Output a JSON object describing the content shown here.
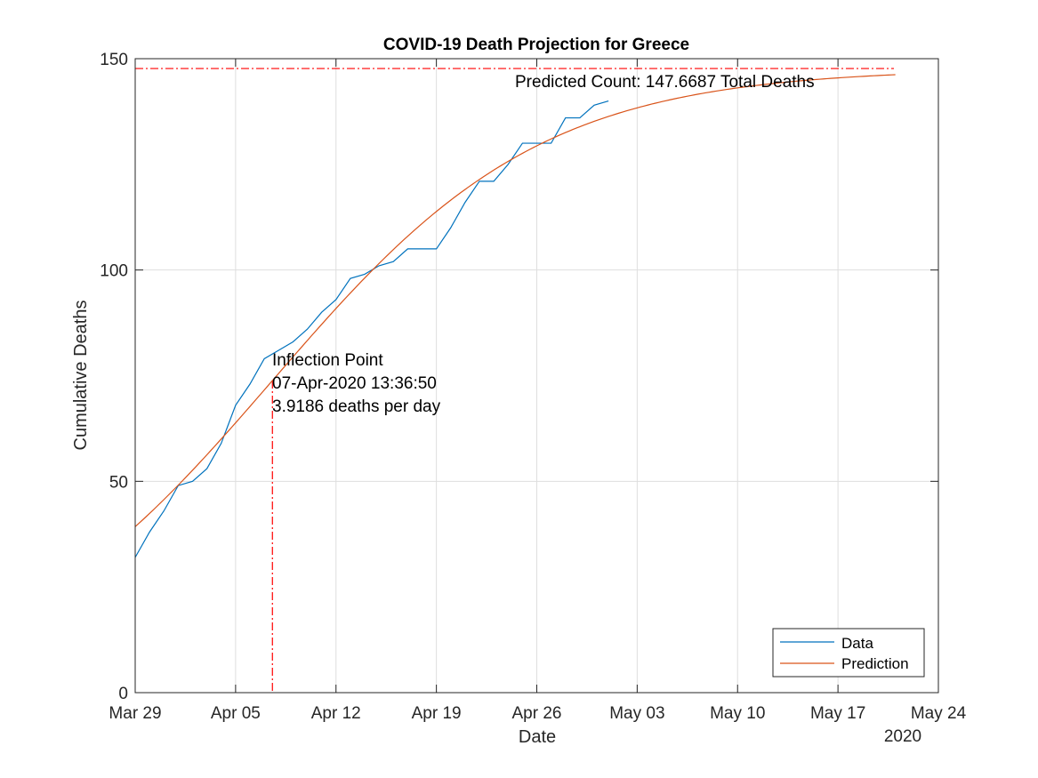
{
  "chart_data": {
    "type": "line",
    "title": "COVID-19 Death Projection for Greece",
    "xlabel": "Date",
    "ylabel": "Cumulative Deaths",
    "xlim": [
      "2020-03-29",
      "2020-05-24"
    ],
    "ylim": [
      0,
      150
    ],
    "x_ticks": [
      "2020-03-29",
      "2020-04-05",
      "2020-04-12",
      "2020-04-19",
      "2020-04-26",
      "2020-05-03",
      "2020-05-10",
      "2020-05-17",
      "2020-05-24"
    ],
    "x_tick_labels": [
      "Mar 29",
      "Apr 05",
      "Apr 12",
      "Apr 19",
      "Apr 26",
      "May 03",
      "May 10",
      "May 17",
      "May 24"
    ],
    "x_secondary_label": "2020",
    "y_ticks": [
      0,
      50,
      100,
      150
    ],
    "grid": true,
    "legend": "bottom-right",
    "series": [
      {
        "name": "Data",
        "color": "#0072BD",
        "x": [
          "2020-03-29",
          "2020-03-30",
          "2020-03-31",
          "2020-04-01",
          "2020-04-02",
          "2020-04-03",
          "2020-04-04",
          "2020-04-05",
          "2020-04-06",
          "2020-04-07",
          "2020-04-08",
          "2020-04-09",
          "2020-04-10",
          "2020-04-11",
          "2020-04-12",
          "2020-04-13",
          "2020-04-14",
          "2020-04-15",
          "2020-04-16",
          "2020-04-17",
          "2020-04-18",
          "2020-04-19",
          "2020-04-20",
          "2020-04-21",
          "2020-04-22",
          "2020-04-23",
          "2020-04-24",
          "2020-04-25",
          "2020-04-26",
          "2020-04-27",
          "2020-04-28",
          "2020-04-29",
          "2020-04-30",
          "2020-05-01"
        ],
        "y": [
          32,
          38,
          43,
          49,
          50,
          53,
          59,
          68,
          73,
          79,
          81,
          83,
          86,
          90,
          93,
          98,
          99,
          101,
          102,
          105,
          105,
          105,
          110,
          116,
          121,
          121,
          125,
          130,
          130,
          130,
          136,
          136,
          139,
          140
        ]
      },
      {
        "name": "Prediction",
        "color": "#D95319",
        "type": "logistic",
        "x_start": "2020-03-29",
        "x_end": "2020-05-21",
        "total": 147.6687,
        "inflection": "2020-04-07T13:36:50",
        "peak_rate": 3.9186
      }
    ],
    "annotations": {
      "predicted_count": {
        "text": "Predicted Count: 147.6687 Total Deaths",
        "y": 147.6687,
        "color": "#FF0000"
      },
      "inflection": {
        "lines": [
          "Inflection Point",
          "07-Apr-2020 13:36:50",
          "3.9186 deaths per day"
        ],
        "x": "2020-04-07T13:36:50",
        "y": 73.834,
        "color": "#FF0000"
      }
    }
  }
}
